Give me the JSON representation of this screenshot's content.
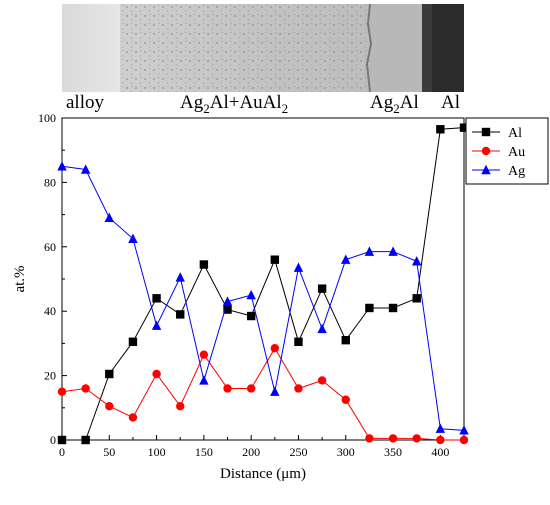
{
  "micrograph": {
    "labels": {
      "alloy": "alloy",
      "mixed": "Ag₂Al+AuAl₂",
      "ag2al": "Ag₂Al",
      "al": "Al"
    }
  },
  "chart_data": {
    "type": "line",
    "xlabel": "Distance (μm)",
    "ylabel": "at.%",
    "xlim": [
      0,
      425
    ],
    "ylim": [
      0,
      100
    ],
    "xticks": [
      "0",
      "50",
      "100",
      "150",
      "200",
      "250",
      "300",
      "350",
      "400"
    ],
    "yticks": [
      "0",
      "20",
      "40",
      "60",
      "80",
      "100"
    ],
    "x": [
      0,
      25,
      50,
      75,
      100,
      125,
      150,
      175,
      200,
      225,
      250,
      275,
      300,
      325,
      350,
      375,
      400,
      425
    ],
    "series": [
      {
        "name": "Al",
        "color": "#000000",
        "marker": "square",
        "values": [
          0,
          0,
          20.5,
          30.5,
          44,
          39,
          54.5,
          40.5,
          38.5,
          56,
          30.5,
          47,
          31,
          41,
          41,
          44,
          96.5,
          97
        ]
      },
      {
        "name": "Au",
        "color": "#ff0000",
        "marker": "circle",
        "values": [
          15,
          16,
          10.5,
          7,
          20.5,
          10.5,
          26.5,
          16,
          16,
          28.5,
          16,
          18.5,
          12.5,
          0.5,
          0.5,
          0.5,
          0,
          0
        ]
      },
      {
        "name": "Ag",
        "color": "#0000ff",
        "marker": "triangle",
        "values": [
          85,
          84,
          69,
          62.5,
          35.5,
          50.5,
          18.5,
          43,
          45,
          15,
          53.5,
          34.5,
          56,
          58.5,
          58.5,
          55.5,
          3.5,
          3
        ]
      }
    ],
    "legend": "right-top",
    "grid": false
  }
}
